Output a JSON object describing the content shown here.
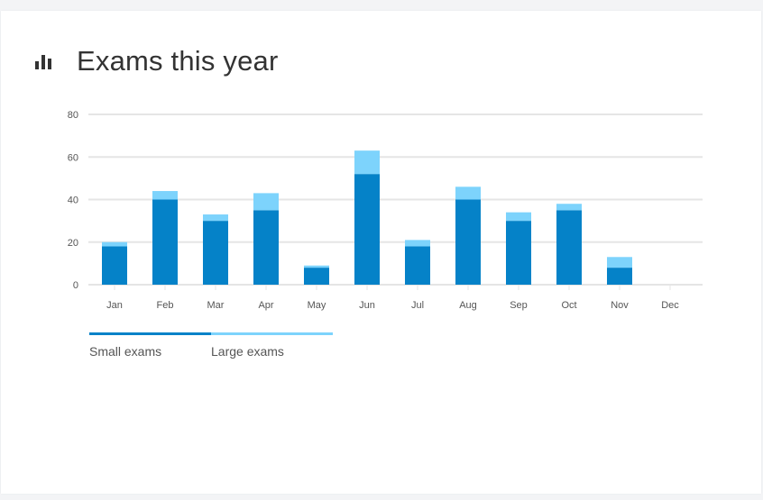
{
  "header": {
    "title": "Exams this year",
    "icon": "bar-chart-icon"
  },
  "colors": {
    "small": "#0582c8",
    "large": "#7dd3fc",
    "grid": "#e5e5e5",
    "icon": "#333333"
  },
  "chart_data": {
    "type": "bar",
    "stacked": true,
    "categories": [
      "Jan",
      "Feb",
      "Mar",
      "Apr",
      "May",
      "Jun",
      "Jul",
      "Aug",
      "Sep",
      "Oct",
      "Nov",
      "Dec"
    ],
    "series": [
      {
        "name": "Small exams",
        "values": [
          18,
          40,
          30,
          35,
          8,
          52,
          18,
          40,
          30,
          35,
          8,
          0
        ]
      },
      {
        "name": "Large exams",
        "values": [
          2,
          4,
          3,
          8,
          1,
          11,
          3,
          6,
          4,
          3,
          5,
          0
        ]
      }
    ],
    "yticks": [
      0,
      20,
      40,
      60,
      80
    ],
    "ylim": [
      0,
      80
    ],
    "grid": true,
    "legend": "bottom-left"
  }
}
